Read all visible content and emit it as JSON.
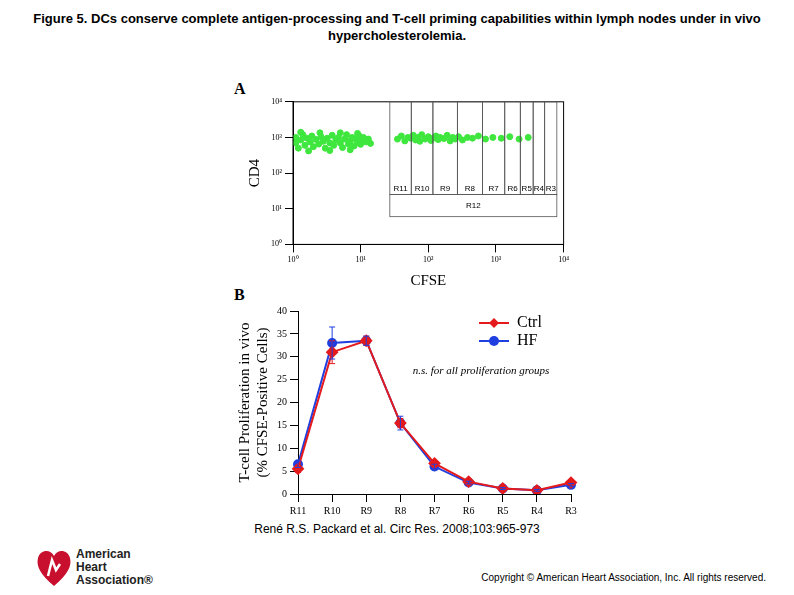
{
  "title": "Figure 5. DCs conserve complete antigen-processing and T-cell priming capabilities within lymph nodes under in vivo hypercholesterolemia.",
  "chart_data": [
    {
      "panel": "A",
      "type": "scatter",
      "x_label": "CFSE",
      "y_label": "CD4",
      "x": [
        1.1,
        1.1,
        1.2,
        1.3,
        1.4,
        1.5,
        1.6,
        1.8,
        1.9,
        2,
        2.2,
        2.4,
        2.6,
        2.8,
        3,
        3.2,
        3.5,
        3.8,
        4,
        4.3,
        4.7,
        5,
        5.4,
        5.8,
        6.2,
        6.6,
        7,
        7.5,
        8,
        8.5,
        9,
        9.5,
        10,
        10.5,
        11,
        12,
        13,
        14,
        1.3,
        2.5,
        5,
        9,
        1.7,
        3.5,
        7,
        35,
        40,
        45,
        50,
        55,
        60,
        65,
        70,
        75,
        80,
        90,
        100,
        110,
        120,
        130,
        140,
        150,
        170,
        190,
        210,
        230,
        250,
        280,
        320,
        380,
        450,
        550,
        700,
        900,
        1200,
        1600,
        2200,
        3000
      ],
      "values": [
        700,
        1000,
        500,
        850,
        1200,
        600,
        950,
        750,
        1100,
        550,
        880,
        650,
        1050,
        780,
        500,
        950,
        700,
        1150,
        600,
        850,
        1000,
        700,
        520,
        900,
        1200,
        650,
        800,
        1000,
        580,
        900,
        720,
        1100,
        640,
        850,
        1000,
        750,
        900,
        680,
        1400,
        1350,
        1350,
        1300,
        420,
        430,
        450,
        900,
        1100,
        800,
        1000,
        950,
        1150,
        850,
        1000,
        780,
        1200,
        900,
        1050,
        820,
        980,
        1100,
        870,
        1000,
        930,
        1150,
        800,
        1000,
        900,
        1050,
        850,
        1000,
        950,
        1100,
        900,
        1000,
        950,
        1050,
        900,
        1000
      ],
      "color": "#3ee63e",
      "marker": "circle",
      "log": true,
      "xlim": [
        1,
        10000
      ],
      "ylim": [
        1,
        10000
      ],
      "xticks": [
        {
          "value": 1,
          "label": "10⁰"
        },
        {
          "value": 10,
          "label": "10¹"
        },
        {
          "value": 100,
          "label": "10²"
        },
        {
          "value": 1000,
          "label": "10³"
        },
        {
          "value": 10000,
          "label": "10⁴"
        }
      ],
      "yticks": [
        {
          "value": 1,
          "label": "10⁰"
        },
        {
          "value": 10,
          "label": "10¹"
        },
        {
          "value": 100,
          "label": "10²"
        },
        {
          "value": 1000,
          "label": "10³"
        },
        {
          "value": 10000,
          "label": "10⁴"
        }
      ],
      "grid": false,
      "gates": [
        {
          "name": "R11",
          "x": [
            27,
            56
          ],
          "y": [
            25,
            10000
          ]
        },
        {
          "name": "R10",
          "x": [
            56,
            117
          ],
          "y": [
            25,
            10000
          ]
        },
        {
          "name": "R9",
          "x": [
            117,
            269
          ],
          "y": [
            25,
            10000
          ]
        },
        {
          "name": "R8",
          "x": [
            269,
            631
          ],
          "y": [
            25,
            10000
          ]
        },
        {
          "name": "R7",
          "x": [
            631,
            1349
          ],
          "y": [
            25,
            10000
          ]
        },
        {
          "name": "R6",
          "x": [
            1349,
            2291
          ],
          "y": [
            25,
            10000
          ]
        },
        {
          "name": "R5",
          "x": [
            2291,
            3548
          ],
          "y": [
            25,
            10000
          ]
        },
        {
          "name": "R4",
          "x": [
            3548,
            5248
          ],
          "y": [
            25,
            10000
          ]
        },
        {
          "name": "R3",
          "x": [
            5248,
            7943
          ],
          "y": [
            25,
            10000
          ]
        },
        {
          "name": "R12",
          "x": [
            27,
            7943
          ],
          "y": [
            6,
            25
          ]
        }
      ]
    },
    {
      "panel": "B",
      "type": "line",
      "y_label": [
        "T-cell Proliferation in vivo",
        "(% CFSE-Positive Cells)"
      ],
      "categories": [
        "R11",
        "R10",
        "R9",
        "R8",
        "R7",
        "R6",
        "R5",
        "R4",
        "R3"
      ],
      "series": [
        {
          "name": "Ctrl",
          "color": "#e41a1c",
          "marker": "diamond",
          "values": [
            5.5,
            31,
            33.5,
            15.5,
            6.7,
            2.7,
            1.2,
            0.8,
            2.5
          ],
          "errors": [
            0.8,
            2.5,
            1,
            1,
            0.6,
            0.4,
            0.2,
            0.2,
            0.4
          ]
        },
        {
          "name": "HF",
          "color": "#1f3fe0",
          "marker": "circle",
          "values": [
            6.5,
            33,
            33.5,
            15.5,
            6,
            2.5,
            1.2,
            0.8,
            2
          ],
          "errors": [
            0.7,
            3.5,
            1,
            1.5,
            0.5,
            0.3,
            0.2,
            0.2,
            0.3
          ]
        }
      ],
      "ylim": [
        0,
        40
      ],
      "yticks": [
        0,
        5,
        10,
        15,
        20,
        25,
        30,
        35,
        40
      ],
      "grid": false,
      "legend": "upper right",
      "annotation": "n.s. for all proliferation groups"
    }
  ],
  "citation": "René R.S. Packard et al. Circ Res. 2008;103:965-973",
  "copyright": "Copyright © American Heart Association, Inc. All rights reserved.",
  "logo": [
    "American",
    "Heart",
    "Association®"
  ]
}
